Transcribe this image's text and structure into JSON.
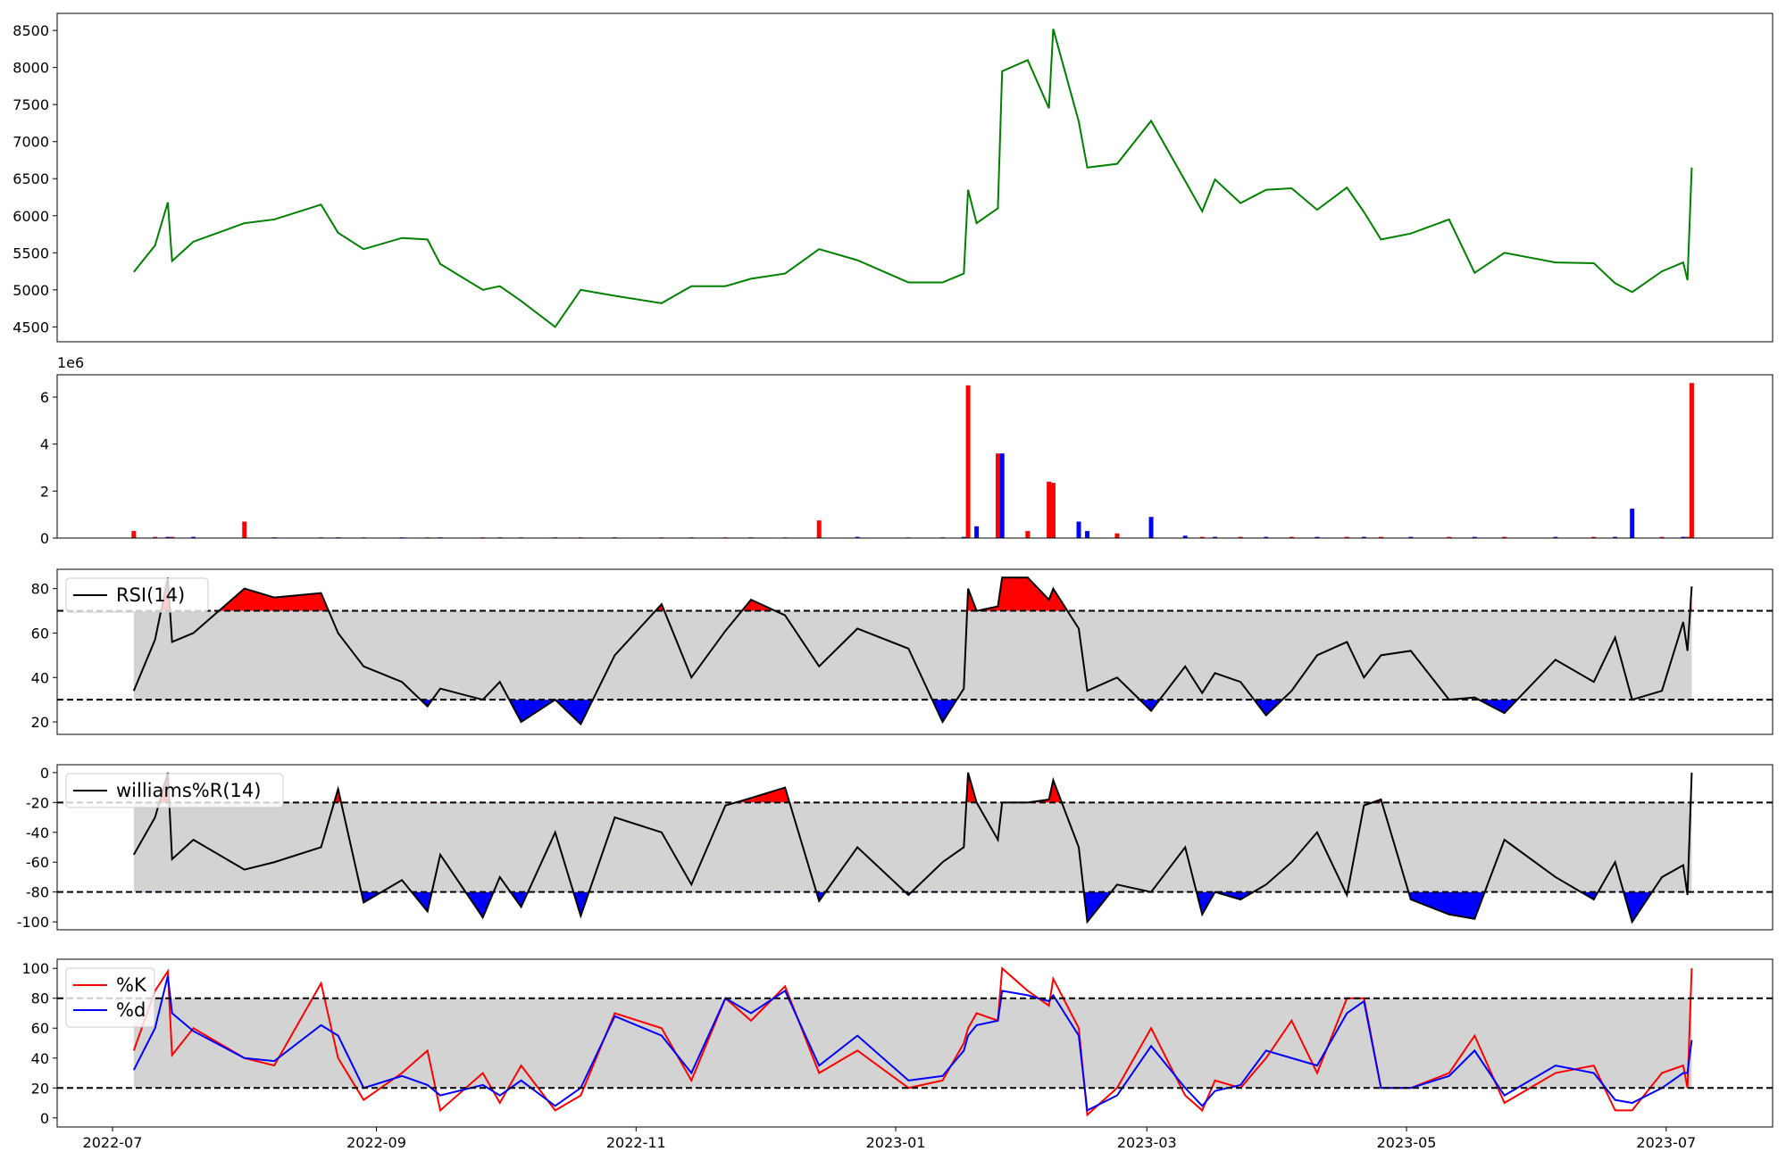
{
  "chart_data": [
    {
      "type": "line",
      "x": [
        "2022-07-06",
        "2022-07-11",
        "2022-07-14",
        "2022-07-15",
        "2022-07-20",
        "2022-08-01",
        "2022-08-08",
        "2022-08-19",
        "2022-08-23",
        "2022-08-29",
        "2022-09-07",
        "2022-09-13",
        "2022-09-16",
        "2022-09-26",
        "2022-09-30",
        "2022-10-05",
        "2022-10-13",
        "2022-10-19",
        "2022-10-27",
        "2022-11-07",
        "2022-11-14",
        "2022-11-22",
        "2022-11-28",
        "2022-12-06",
        "2022-12-14",
        "2022-12-23",
        "2023-01-04",
        "2023-01-12",
        "2023-01-17",
        "2023-01-18",
        "2023-01-20",
        "2023-01-25",
        "2023-01-26",
        "2023-02-01",
        "2023-02-06",
        "2023-02-07",
        "2023-02-13",
        "2023-02-15",
        "2023-02-22",
        "2023-03-02",
        "2023-03-10",
        "2023-03-14",
        "2023-03-17",
        "2023-03-23",
        "2023-03-29",
        "2023-04-04",
        "2023-04-10",
        "2023-04-17",
        "2023-04-21",
        "2023-04-25",
        "2023-05-02",
        "2023-05-11",
        "2023-05-17",
        "2023-05-24",
        "2023-06-05",
        "2023-06-14",
        "2023-06-19",
        "2023-06-23",
        "2023-06-30",
        "2023-07-05",
        "2023-07-06",
        "2023-07-07"
      ],
      "series": [
        {
          "color": "green",
          "values": [
            5240,
            5600,
            6180,
            5390,
            5650,
            5900,
            5950,
            6150,
            5770,
            5550,
            5700,
            5680,
            5350,
            5000,
            5050,
            4850,
            4500,
            5000,
            4920,
            4820,
            5050,
            5050,
            5150,
            5220,
            5550,
            5400,
            5100,
            5100,
            5220,
            6350,
            5900,
            6100,
            7950,
            8100,
            7450,
            8520,
            7270,
            6650,
            6700,
            7280,
            6470,
            6060,
            6490,
            6170,
            6350,
            6370,
            6080,
            6380,
            6050,
            5680,
            5760,
            5950,
            5230,
            5500,
            5370,
            5360,
            5090,
            4970,
            5250,
            5370,
            5130,
            6650
          ]
        }
      ],
      "xlim": [
        "2022-06-18",
        "2023-07-26"
      ],
      "ylim": [
        4300,
        8730
      ],
      "yticks": [
        4500,
        5000,
        5500,
        6000,
        6500,
        7000,
        7500,
        8000,
        8500
      ]
    },
    {
      "type": "bar",
      "x": [
        "2022-07-06",
        "2022-07-11",
        "2022-07-14",
        "2022-07-15",
        "2022-07-20",
        "2022-08-01",
        "2022-08-08",
        "2022-08-19",
        "2022-08-23",
        "2022-08-29",
        "2022-09-07",
        "2022-09-13",
        "2022-09-16",
        "2022-09-26",
        "2022-09-30",
        "2022-10-05",
        "2022-10-13",
        "2022-10-19",
        "2022-10-27",
        "2022-11-07",
        "2022-11-14",
        "2022-11-22",
        "2022-11-28",
        "2022-12-06",
        "2022-12-14",
        "2022-12-23",
        "2023-01-04",
        "2023-01-12",
        "2023-01-17",
        "2023-01-18",
        "2023-01-20",
        "2023-01-25",
        "2023-01-26",
        "2023-02-01",
        "2023-02-06",
        "2023-02-07",
        "2023-02-13",
        "2023-02-15",
        "2023-02-22",
        "2023-03-02",
        "2023-03-10",
        "2023-03-14",
        "2023-03-17",
        "2023-03-23",
        "2023-03-29",
        "2023-04-04",
        "2023-04-10",
        "2023-04-17",
        "2023-04-21",
        "2023-04-25",
        "2023-05-02",
        "2023-05-11",
        "2023-05-17",
        "2023-05-24",
        "2023-06-05",
        "2023-06-14",
        "2023-06-19",
        "2023-06-23",
        "2023-06-30",
        "2023-07-05",
        "2023-07-06",
        "2023-07-07"
      ],
      "values": [
        0.3,
        0.05,
        0.05,
        0.05,
        0.05,
        0.7,
        0.03,
        0.03,
        0.03,
        0.03,
        0.03,
        0.03,
        0.03,
        0.03,
        0.03,
        0.03,
        0.03,
        0.03,
        0.03,
        0.03,
        0.03,
        0.03,
        0.03,
        0.03,
        0.75,
        0.05,
        0.03,
        0.03,
        0.05,
        6.5,
        0.5,
        3.6,
        3.6,
        0.3,
        2.4,
        2.35,
        0.7,
        0.3,
        0.2,
        0.9,
        0.1,
        0.05,
        0.05,
        0.05,
        0.05,
        0.05,
        0.05,
        0.05,
        0.05,
        0.05,
        0.05,
        0.05,
        0.05,
        0.05,
        0.05,
        0.05,
        0.05,
        1.25,
        0.05,
        0.05,
        0.05,
        6.6
      ],
      "colors": [
        "red",
        "red",
        "blue",
        "red",
        "blue",
        "red",
        "blue",
        "red",
        "blue",
        "red",
        "blue",
        "red",
        "blue",
        "red",
        "blue",
        "red",
        "blue",
        "red",
        "blue",
        "red",
        "blue",
        "red",
        "blue",
        "red",
        "red",
        "blue",
        "red",
        "blue",
        "blue",
        "red",
        "blue",
        "red",
        "blue",
        "red",
        "red",
        "red",
        "blue",
        "blue",
        "red",
        "blue",
        "blue",
        "red",
        "blue",
        "red",
        "blue",
        "red",
        "blue",
        "red",
        "blue",
        "red",
        "blue",
        "red",
        "blue",
        "red",
        "blue",
        "red",
        "blue",
        "blue",
        "red",
        "blue",
        "red",
        "red"
      ],
      "offset_label": "1e6",
      "xlim": [
        "2022-06-18",
        "2023-07-26"
      ],
      "ylim": [
        0,
        6.95
      ],
      "yticks": [
        0,
        2,
        4,
        6
      ]
    },
    {
      "type": "line",
      "x": [
        "2022-07-06",
        "2022-07-11",
        "2022-07-14",
        "2022-07-15",
        "2022-07-20",
        "2022-08-01",
        "2022-08-08",
        "2022-08-19",
        "2022-08-23",
        "2022-08-29",
        "2022-09-07",
        "2022-09-13",
        "2022-09-16",
        "2022-09-26",
        "2022-09-30",
        "2022-10-05",
        "2022-10-13",
        "2022-10-19",
        "2022-10-27",
        "2022-11-07",
        "2022-11-14",
        "2022-11-22",
        "2022-11-28",
        "2022-12-06",
        "2022-12-14",
        "2022-12-23",
        "2023-01-04",
        "2023-01-12",
        "2023-01-17",
        "2023-01-18",
        "2023-01-20",
        "2023-01-25",
        "2023-01-26",
        "2023-02-01",
        "2023-02-06",
        "2023-02-07",
        "2023-02-13",
        "2023-02-15",
        "2023-02-22",
        "2023-03-02",
        "2023-03-10",
        "2023-03-14",
        "2023-03-17",
        "2023-03-23",
        "2023-03-29",
        "2023-04-04",
        "2023-04-10",
        "2023-04-17",
        "2023-04-21",
        "2023-04-25",
        "2023-05-02",
        "2023-05-11",
        "2023-05-17",
        "2023-05-24",
        "2023-06-05",
        "2023-06-14",
        "2023-06-19",
        "2023-06-23",
        "2023-06-30",
        "2023-07-05",
        "2023-07-06",
        "2023-07-07"
      ],
      "series": [
        {
          "name": "RSI(14)",
          "color": "black",
          "values": [
            34,
            57,
            85,
            56,
            60,
            80,
            76,
            78,
            60,
            45,
            38,
            27,
            35,
            30,
            38,
            20,
            30,
            19,
            50,
            73,
            40,
            61,
            75,
            68,
            45,
            62,
            53,
            20,
            35,
            80,
            70,
            72,
            85,
            85,
            75,
            80,
            62,
            34,
            40,
            25,
            45,
            33,
            42,
            38,
            23,
            34,
            50,
            56,
            40,
            50,
            52,
            30,
            31,
            24,
            48,
            38,
            58,
            30,
            34,
            65,
            52,
            81
          ]
        }
      ],
      "levels": [
        30,
        70
      ],
      "band_color": "lightgray",
      "fill_above": "red",
      "fill_below": "blue",
      "legend": "upper left",
      "xlim": [
        "2022-06-18",
        "2023-07-26"
      ],
      "ylim": [
        14.4,
        88.7
      ],
      "yticks": [
        20,
        40,
        60,
        80
      ]
    },
    {
      "type": "line",
      "x": [
        "2022-07-06",
        "2022-07-11",
        "2022-07-14",
        "2022-07-15",
        "2022-07-20",
        "2022-08-01",
        "2022-08-08",
        "2022-08-19",
        "2022-08-23",
        "2022-08-29",
        "2022-09-07",
        "2022-09-13",
        "2022-09-16",
        "2022-09-26",
        "2022-09-30",
        "2022-10-05",
        "2022-10-13",
        "2022-10-19",
        "2022-10-27",
        "2022-11-07",
        "2022-11-14",
        "2022-11-22",
        "2022-11-28",
        "2022-12-06",
        "2022-12-14",
        "2022-12-23",
        "2023-01-04",
        "2023-01-12",
        "2023-01-17",
        "2023-01-18",
        "2023-01-20",
        "2023-01-25",
        "2023-01-26",
        "2023-02-01",
        "2023-02-06",
        "2023-02-07",
        "2023-02-13",
        "2023-02-15",
        "2023-02-22",
        "2023-03-02",
        "2023-03-10",
        "2023-03-14",
        "2023-03-17",
        "2023-03-23",
        "2023-03-29",
        "2023-04-04",
        "2023-04-10",
        "2023-04-17",
        "2023-04-21",
        "2023-04-25",
        "2023-05-02",
        "2023-05-11",
        "2023-05-17",
        "2023-05-24",
        "2023-06-05",
        "2023-06-14",
        "2023-06-19",
        "2023-06-23",
        "2023-06-30",
        "2023-07-05",
        "2023-07-06",
        "2023-07-07"
      ],
      "series": [
        {
          "name": "williams%R(14)",
          "color": "black",
          "values": [
            -55,
            -30,
            0,
            -58,
            -45,
            -65,
            -60,
            -50,
            -11,
            -87,
            -72,
            -93,
            -55,
            -97,
            -70,
            -90,
            -40,
            -96,
            -30,
            -40,
            -75,
            -22,
            -17,
            -10,
            -86,
            -50,
            -82,
            -60,
            -50,
            0,
            -20,
            -45,
            -20,
            -20,
            -18,
            -5,
            -50,
            -100,
            -75,
            -80,
            -50,
            -95,
            -80,
            -85,
            -75,
            -60,
            -40,
            -82,
            -22,
            -18,
            -85,
            -95,
            -98,
            -45,
            -70,
            -85,
            -60,
            -100,
            -70,
            -62,
            -82,
            0
          ]
        }
      ],
      "levels": [
        -80,
        -20
      ],
      "band_color": "lightgray",
      "fill_above": "red",
      "fill_below": "blue",
      "legend": "upper left",
      "xlim": [
        "2022-06-18",
        "2023-07-26"
      ],
      "ylim": [
        -105.3,
        5.3
      ],
      "yticks": [
        -100,
        -80,
        -60,
        -40,
        -20,
        0
      ]
    },
    {
      "type": "line",
      "x": [
        "2022-07-06",
        "2022-07-11",
        "2022-07-14",
        "2022-07-15",
        "2022-07-20",
        "2022-08-01",
        "2022-08-08",
        "2022-08-19",
        "2022-08-23",
        "2022-08-29",
        "2022-09-07",
        "2022-09-13",
        "2022-09-16",
        "2022-09-26",
        "2022-09-30",
        "2022-10-05",
        "2022-10-13",
        "2022-10-19",
        "2022-10-27",
        "2022-11-07",
        "2022-11-14",
        "2022-11-22",
        "2022-11-28",
        "2022-12-06",
        "2022-12-14",
        "2022-12-23",
        "2023-01-04",
        "2023-01-12",
        "2023-01-17",
        "2023-01-18",
        "2023-01-20",
        "2023-01-25",
        "2023-01-26",
        "2023-02-01",
        "2023-02-06",
        "2023-02-07",
        "2023-02-13",
        "2023-02-15",
        "2023-02-22",
        "2023-03-02",
        "2023-03-10",
        "2023-03-14",
        "2023-03-17",
        "2023-03-23",
        "2023-03-29",
        "2023-04-04",
        "2023-04-10",
        "2023-04-17",
        "2023-04-21",
        "2023-04-25",
        "2023-05-02",
        "2023-05-11",
        "2023-05-17",
        "2023-05-24",
        "2023-06-05",
        "2023-06-14",
        "2023-06-19",
        "2023-06-23",
        "2023-06-30",
        "2023-07-05",
        "2023-07-06",
        "2023-07-07"
      ],
      "series": [
        {
          "name": "%K",
          "color": "red",
          "values": [
            45,
            85,
            98,
            42,
            60,
            40,
            35,
            90,
            40,
            12,
            30,
            45,
            5,
            30,
            10,
            35,
            5,
            15,
            70,
            60,
            25,
            80,
            65,
            88,
            30,
            45,
            20,
            25,
            50,
            60,
            70,
            65,
            100,
            85,
            75,
            93,
            60,
            2,
            20,
            60,
            15,
            5,
            25,
            20,
            40,
            65,
            30,
            80,
            80,
            20,
            20,
            30,
            55,
            10,
            30,
            35,
            5,
            5,
            30,
            35,
            20,
            100
          ]
        },
        {
          "name": "%d",
          "color": "blue",
          "values": [
            32,
            60,
            95,
            70,
            58,
            40,
            38,
            62,
            55,
            20,
            28,
            22,
            15,
            22,
            15,
            25,
            8,
            20,
            68,
            55,
            30,
            80,
            70,
            85,
            35,
            55,
            25,
            28,
            45,
            55,
            62,
            65,
            85,
            82,
            78,
            82,
            55,
            5,
            15,
            48,
            20,
            8,
            18,
            22,
            45,
            40,
            35,
            70,
            78,
            20,
            20,
            28,
            45,
            15,
            35,
            30,
            12,
            10,
            20,
            30,
            30,
            52
          ]
        }
      ],
      "levels": [
        20,
        80
      ],
      "band_color": "lightgray",
      "legend": "upper left",
      "xlim": [
        "2022-06-18",
        "2023-07-26"
      ],
      "ylim": [
        -6.1,
        106.1
      ],
      "yticks": [
        0,
        20,
        40,
        60,
        80,
        100
      ],
      "xticks": [
        {
          "value": "2022-07-01",
          "label": "2022-07"
        },
        {
          "value": "2022-09-01",
          "label": "2022-09"
        },
        {
          "value": "2022-11-01",
          "label": "2022-11"
        },
        {
          "value": "2023-01-01",
          "label": "2023-01"
        },
        {
          "value": "2023-03-01",
          "label": "2023-03"
        },
        {
          "value": "2023-05-01",
          "label": "2023-05"
        },
        {
          "value": "2023-07-01",
          "label": "2023-07"
        }
      ]
    }
  ]
}
